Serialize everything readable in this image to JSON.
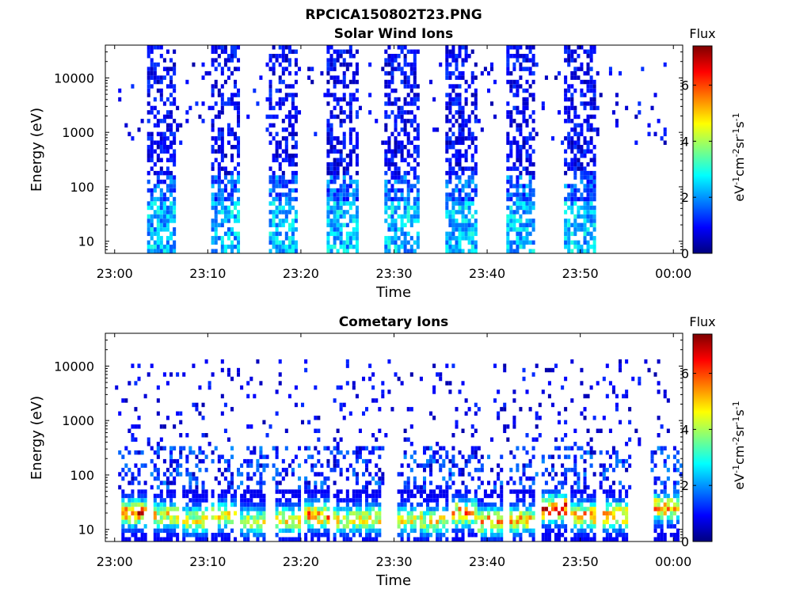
{
  "figure": {
    "title": "RPCICA150802T23.PNG"
  },
  "colormap": [
    "#00007f",
    "#0000ff",
    "#007fff",
    "#00ffff",
    "#7fff7f",
    "#ffff00",
    "#ff7f00",
    "#ff0000",
    "#7f0000"
  ],
  "chart_data": [
    {
      "type": "heatmap",
      "title": "Solar Wind Ions",
      "xlabel": "Time",
      "ylabel": "Energy (eV)",
      "x_ticks": [
        "23:00",
        "23:10",
        "23:20",
        "23:30",
        "23:40",
        "23:50",
        "00:00"
      ],
      "x_range_minutes": [
        -1,
        61
      ],
      "y_scale": "log",
      "y_ticks": [
        "10",
        "100",
        "1000",
        "10000"
      ],
      "ylim": [
        6,
        40000
      ],
      "colorbar": {
        "label": "Flux",
        "unit": "eV-1cm-2sr-1s-1",
        "min": 0,
        "max": 7.4,
        "ticks": [
          "0",
          "2",
          "4",
          "6"
        ]
      },
      "bursts": [
        {
          "start": 3.5,
          "end": 6.6,
          "zmax": 3.2
        },
        {
          "start": 10.2,
          "end": 13.4,
          "zmax": 3.3
        },
        {
          "start": 16.6,
          "end": 19.8,
          "zmax": 3.2
        },
        {
          "start": 22.9,
          "end": 26.2,
          "zmax": 3.4
        },
        {
          "start": 29.1,
          "end": 32.7,
          "zmax": 3.3
        },
        {
          "start": 35.5,
          "end": 38.9,
          "zmax": 3.4
        },
        {
          "start": 42.0,
          "end": 45.2,
          "zmax": 3.3
        },
        {
          "start": 48.4,
          "end": 51.8,
          "zmax": 3.3
        }
      ]
    },
    {
      "type": "heatmap",
      "title": "Cometary Ions",
      "xlabel": "Time",
      "ylabel": "Energy (eV)",
      "x_ticks": [
        "23:00",
        "23:10",
        "23:20",
        "23:30",
        "23:40",
        "23:50",
        "00:00"
      ],
      "x_range_minutes": [
        -1,
        61
      ],
      "y_scale": "log",
      "y_ticks": [
        "10",
        "100",
        "1000",
        "10000"
      ],
      "ylim": [
        6,
        40000
      ],
      "colorbar": {
        "label": "Flux",
        "unit": "eV-1cm-2sr-1s-1",
        "min": 0,
        "max": 7.4,
        "ticks": [
          "0",
          "2",
          "4",
          "6"
        ]
      },
      "hotspots": [
        {
          "t": 2.0,
          "e": 20,
          "z": 6.8
        },
        {
          "t": 5.5,
          "e": 18,
          "z": 5.2
        },
        {
          "t": 8.5,
          "e": 15,
          "z": 5.0
        },
        {
          "t": 11.8,
          "e": 18,
          "z": 5.4
        },
        {
          "t": 14.9,
          "e": 14,
          "z": 4.8
        },
        {
          "t": 18.5,
          "e": 15,
          "z": 5.2
        },
        {
          "t": 21.8,
          "e": 18,
          "z": 6.0
        },
        {
          "t": 24.8,
          "e": 15,
          "z": 4.9
        },
        {
          "t": 27.2,
          "e": 16,
          "z": 5.3
        },
        {
          "t": 31.8,
          "e": 15,
          "z": 5.0
        },
        {
          "t": 34.3,
          "e": 14,
          "z": 5.0
        },
        {
          "t": 37.5,
          "e": 20,
          "z": 6.0
        },
        {
          "t": 40.2,
          "e": 14,
          "z": 6.0
        },
        {
          "t": 43.8,
          "e": 15,
          "z": 5.6
        },
        {
          "t": 47.3,
          "e": 24,
          "z": 7.2
        },
        {
          "t": 50.2,
          "e": 18,
          "z": 6.0
        },
        {
          "t": 53.8,
          "e": 18,
          "z": 6.0
        },
        {
          "t": 59.3,
          "e": 25,
          "z": 6.2
        }
      ]
    }
  ]
}
